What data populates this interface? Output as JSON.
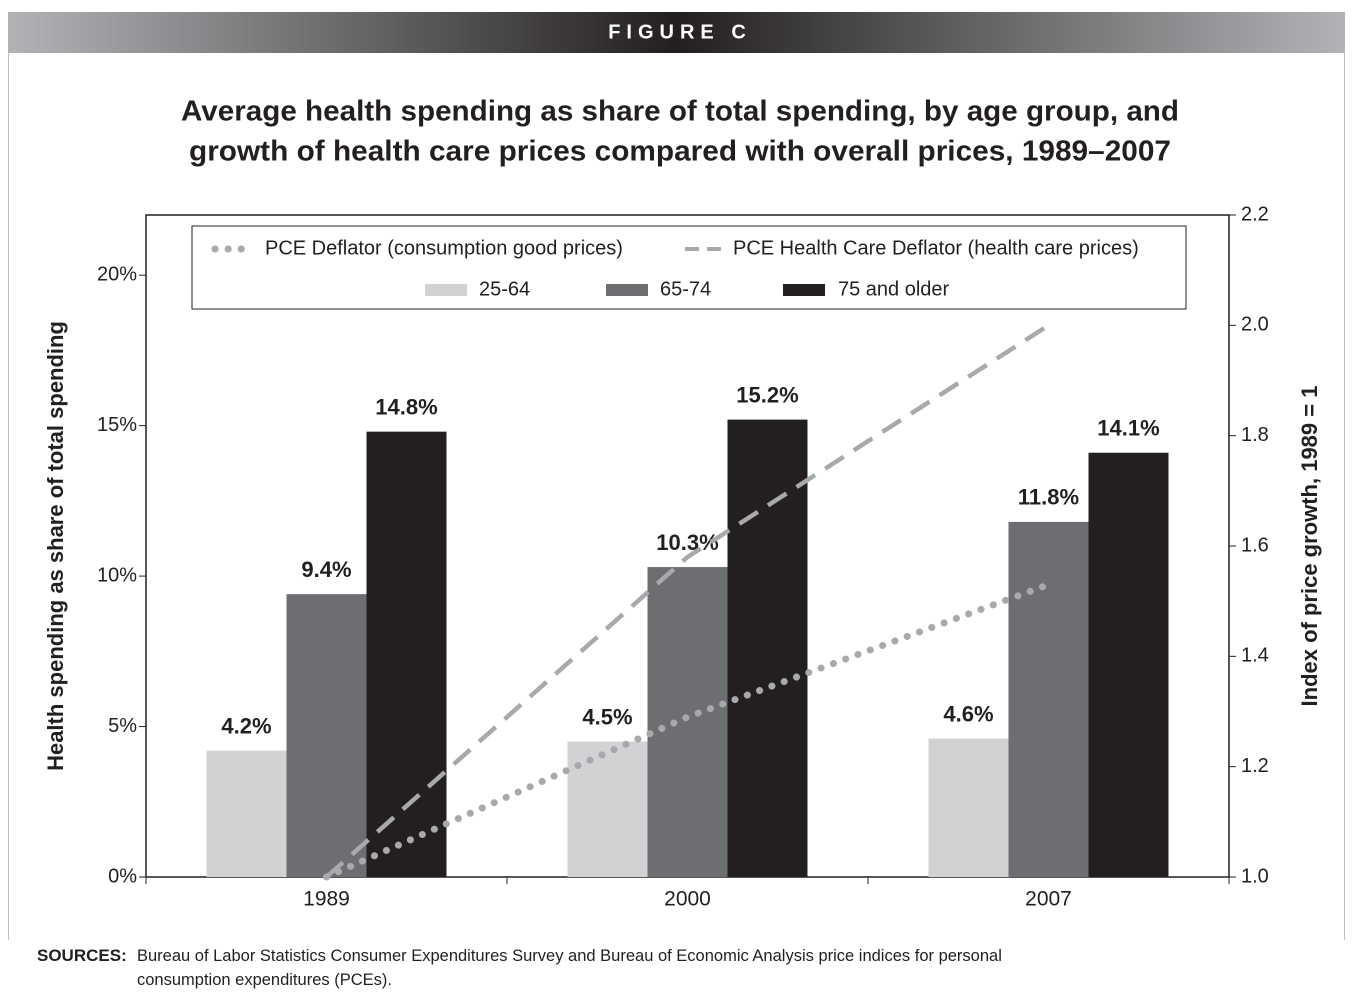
{
  "header": "FIGURE C",
  "chart_data": {
    "type": "bar",
    "title": [
      "Average health spending as share of total spending, by age group, and",
      "growth of health care prices compared with overall prices, 1989–2007"
    ],
    "categories": [
      "1989",
      "2000",
      "2007"
    ],
    "y_label": "Health spending as share of total spending",
    "y2_label": "Index of price growth, 1989 = 1",
    "ylim": [
      0,
      22
    ],
    "yticks": [
      {
        "value": 0,
        "label": "0%"
      },
      {
        "value": 5,
        "label": "5%"
      },
      {
        "value": 10,
        "label": "10%"
      },
      {
        "value": 15,
        "label": "15%"
      },
      {
        "value": 20,
        "label": "20%"
      }
    ],
    "y2lim": [
      1.0,
      2.2
    ],
    "y2ticks": [
      {
        "value": 1.0,
        "label": "1.0"
      },
      {
        "value": 1.2,
        "label": "1.2"
      },
      {
        "value": 1.4,
        "label": "1.4"
      },
      {
        "value": 1.6,
        "label": "1.6"
      },
      {
        "value": 1.8,
        "label": "1.8"
      },
      {
        "value": 2.0,
        "label": "2.0"
      },
      {
        "value": 2.2,
        "label": "2.2"
      }
    ],
    "series": [
      {
        "name": "PCE Deflator (consumption good prices)",
        "type": "line",
        "style": "dotted",
        "axis": "y2",
        "color": "#a7a9ac",
        "values": [
          1.0,
          1.29,
          1.53
        ]
      },
      {
        "name": "PCE Health Care Deflator (health care prices)",
        "type": "line",
        "style": "dashed",
        "axis": "y2",
        "color": "#a7a9ac",
        "values": [
          1.0,
          1.58,
          2.0
        ]
      },
      {
        "name": "25-64",
        "type": "bar",
        "color": "#d1d2d4",
        "values": [
          4.2,
          4.5,
          4.6
        ],
        "value_labels": [
          "4.2%",
          "4.5%",
          "4.6%"
        ]
      },
      {
        "name": "65-74",
        "type": "bar",
        "color": "#6d6e71",
        "values": [
          9.4,
          10.3,
          11.8
        ],
        "value_labels": [
          "9.4%",
          "10.3%",
          "11.8%"
        ]
      },
      {
        "name": "75 and older",
        "type": "bar",
        "color": "#231f20",
        "values": [
          14.8,
          15.2,
          14.1
        ],
        "value_labels": [
          "14.8%",
          "15.2%",
          "14.1%"
        ]
      }
    ]
  },
  "source": {
    "label": "SOURCES:",
    "text": "Bureau of Labor Statistics Consumer Expenditures Survey and Bureau of Economic Analysis price indices for personal consumption expenditures (PCEs)."
  }
}
